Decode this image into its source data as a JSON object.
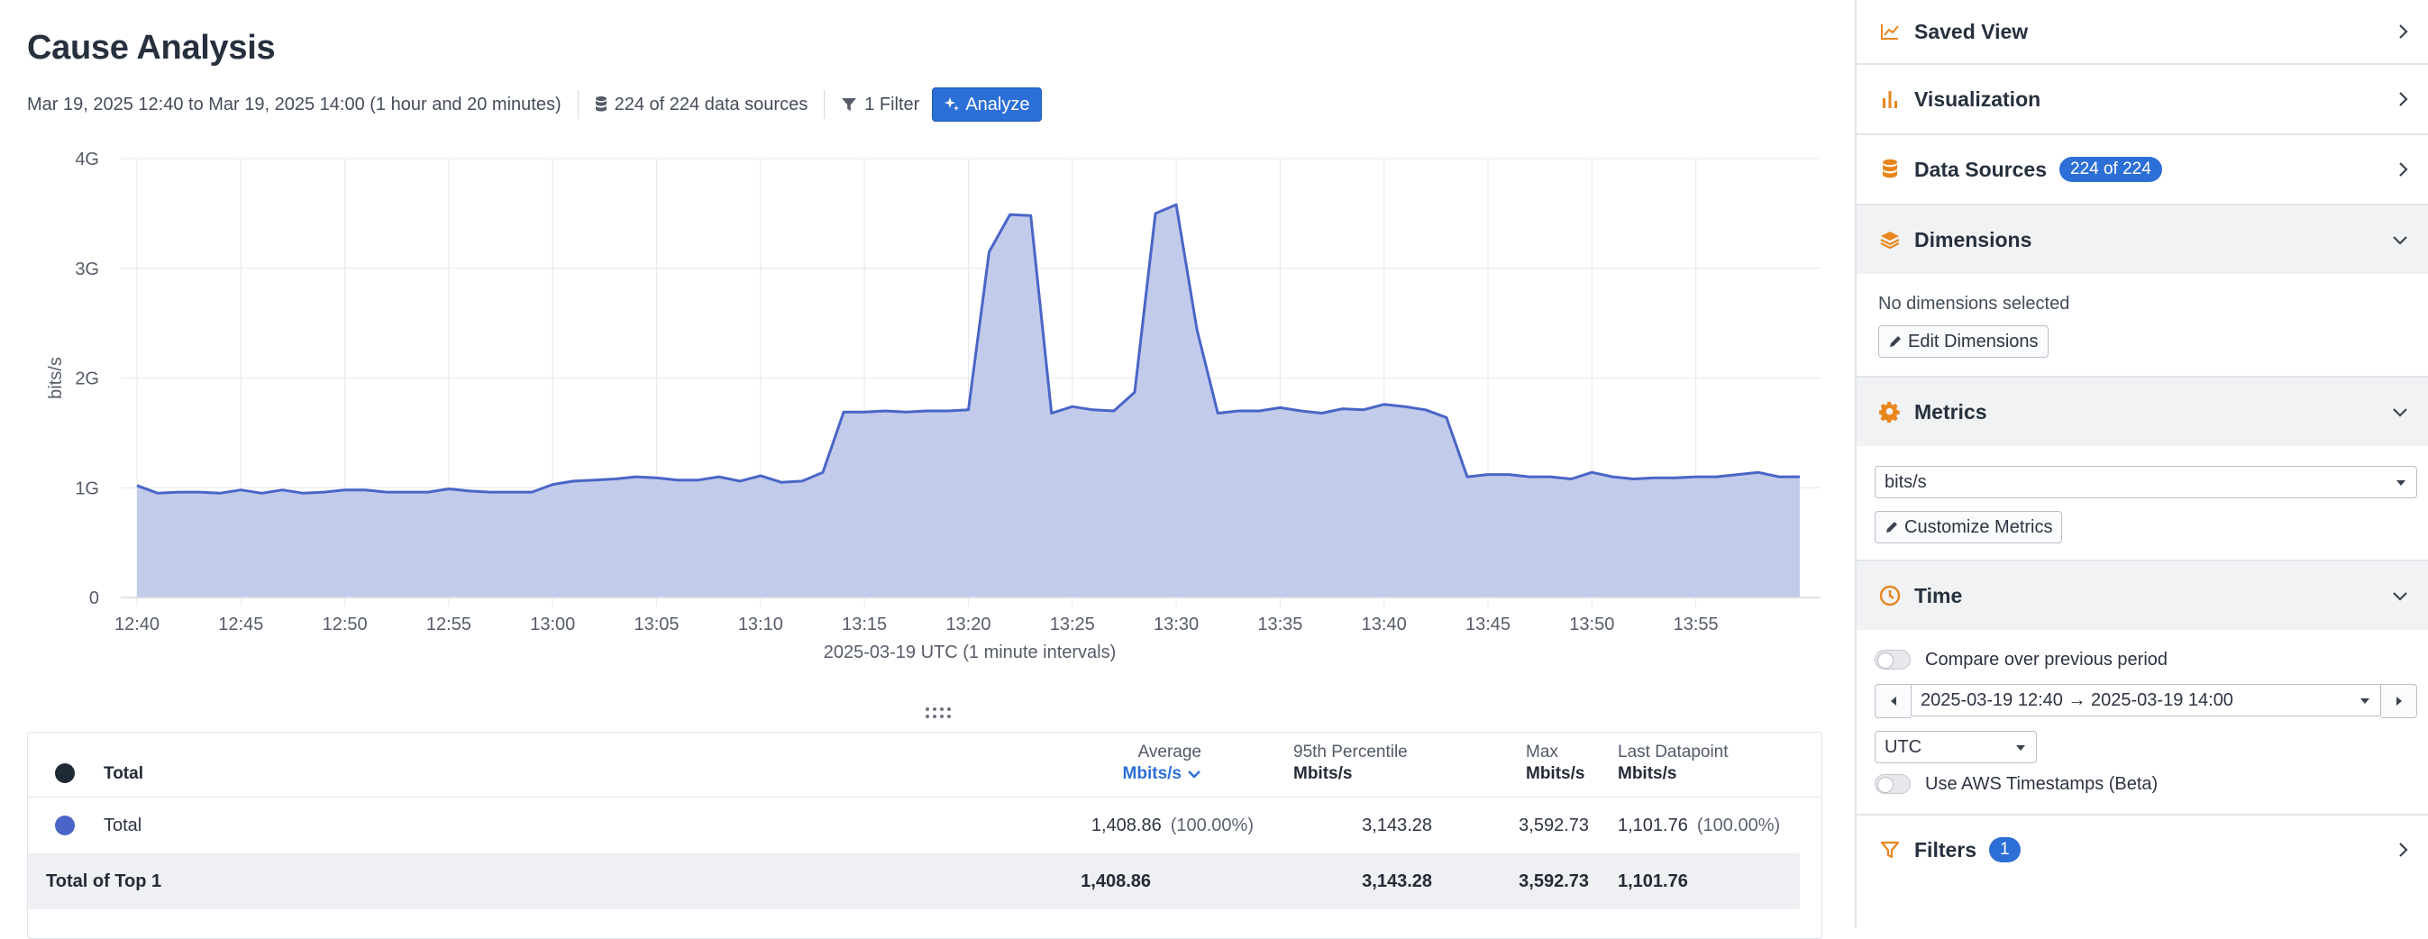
{
  "page": {
    "title": "Cause Analysis",
    "time_range": "Mar 19, 2025 12:40 to Mar 19, 2025 14:00 (1 hour and 20 minutes)",
    "data_sources": "224 of 224 data sources",
    "filter": "1 Filter",
    "analyze": "Analyze"
  },
  "chart_data": {
    "type": "area",
    "title": "",
    "ylabel": "bits/s",
    "xlabel": "2025-03-19 UTC (1 minute intervals)",
    "ylim": [
      0,
      4
    ],
    "y_unit": "G bits/s",
    "y_ticks": [
      "0",
      "1G",
      "2G",
      "3G",
      "4G"
    ],
    "x_ticks": [
      "12:40",
      "12:45",
      "12:50",
      "12:55",
      "13:00",
      "13:05",
      "13:10",
      "13:15",
      "13:20",
      "13:25",
      "13:30",
      "13:35",
      "13:40",
      "13:45",
      "13:50",
      "13:55"
    ],
    "series": [
      {
        "name": "Total",
        "color": "#4a65c7",
        "fill": "#c3cbeb",
        "values": [
          1.02,
          0.95,
          0.96,
          0.96,
          0.95,
          0.98,
          0.95,
          0.98,
          0.95,
          0.96,
          0.98,
          0.98,
          0.96,
          0.96,
          0.96,
          0.99,
          0.97,
          0.96,
          0.96,
          0.96,
          1.03,
          1.06,
          1.07,
          1.08,
          1.1,
          1.09,
          1.07,
          1.07,
          1.1,
          1.06,
          1.11,
          1.05,
          1.06,
          1.14,
          1.69,
          1.69,
          1.7,
          1.69,
          1.7,
          1.7,
          1.71,
          3.15,
          3.49,
          3.48,
          1.68,
          1.74,
          1.71,
          1.7,
          1.87,
          3.5,
          3.58,
          2.44,
          1.68,
          1.7,
          1.7,
          1.73,
          1.7,
          1.68,
          1.72,
          1.71,
          1.76,
          1.74,
          1.71,
          1.64,
          1.1,
          1.12,
          1.12,
          1.1,
          1.1,
          1.08,
          1.14,
          1.1,
          1.08,
          1.09,
          1.09,
          1.1,
          1.1,
          1.12,
          1.14,
          1.1,
          1.1
        ]
      }
    ]
  },
  "table": {
    "header_total": "Total",
    "col_average": "Average",
    "col_average_unit": "Mbits/s",
    "col_p95": "95th Percentile",
    "col_p95_unit": "Mbits/s",
    "col_max": "Max",
    "col_max_unit": "Mbits/s",
    "col_last": "Last Datapoint",
    "col_last_unit": "Mbits/s",
    "rows": [
      {
        "label": "Total",
        "average": "1,408.86",
        "average_pct": "(100.00%)",
        "p95": "3,143.28",
        "max": "3,592.73",
        "last": "1,101.76",
        "last_pct": "(100.00%)"
      }
    ],
    "summary": {
      "label": "Total of Top 1",
      "average": "1,408.86",
      "p95": "3,143.28",
      "max": "3,592.73",
      "last": "1,101.76"
    }
  },
  "sidebar": {
    "saved_view": "Saved View",
    "visualization": "Visualization",
    "data_sources": "Data Sources",
    "data_sources_badge": "224 of 224",
    "dimensions": "Dimensions",
    "dimensions_empty": "No dimensions selected",
    "edit_dimensions": "Edit Dimensions",
    "metrics": "Metrics",
    "metric_value": "bits/s",
    "customize_metrics": "Customize Metrics",
    "time": "Time",
    "compare_label": "Compare over previous period",
    "range_value": "2025-03-19 12:40 → 2025-03-19 14:00",
    "timezone": "UTC",
    "aws_label": "Use AWS Timestamps (Beta)",
    "filters": "Filters",
    "filters_badge": "1"
  },
  "colors": {
    "accent": "#2c6fd6",
    "icon_orange": "#e8861c",
    "series_line": "#4a65c7",
    "series_fill": "#c3cbeb"
  }
}
